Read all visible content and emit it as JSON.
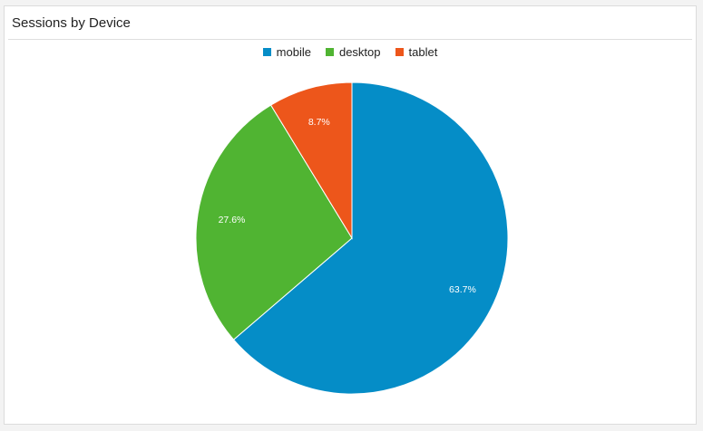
{
  "widget": {
    "title": "Sessions by Device"
  },
  "chart_data": {
    "type": "pie",
    "legend_position": "top",
    "slices": [
      {
        "name": "mobile",
        "value": 63.7,
        "label": "63.7%",
        "color": "#058dc7"
      },
      {
        "name": "desktop",
        "value": 27.6,
        "label": "27.6%",
        "color": "#50b432"
      },
      {
        "name": "tablet",
        "value": 8.7,
        "label": "8.7%",
        "color": "#ed561b"
      }
    ]
  }
}
